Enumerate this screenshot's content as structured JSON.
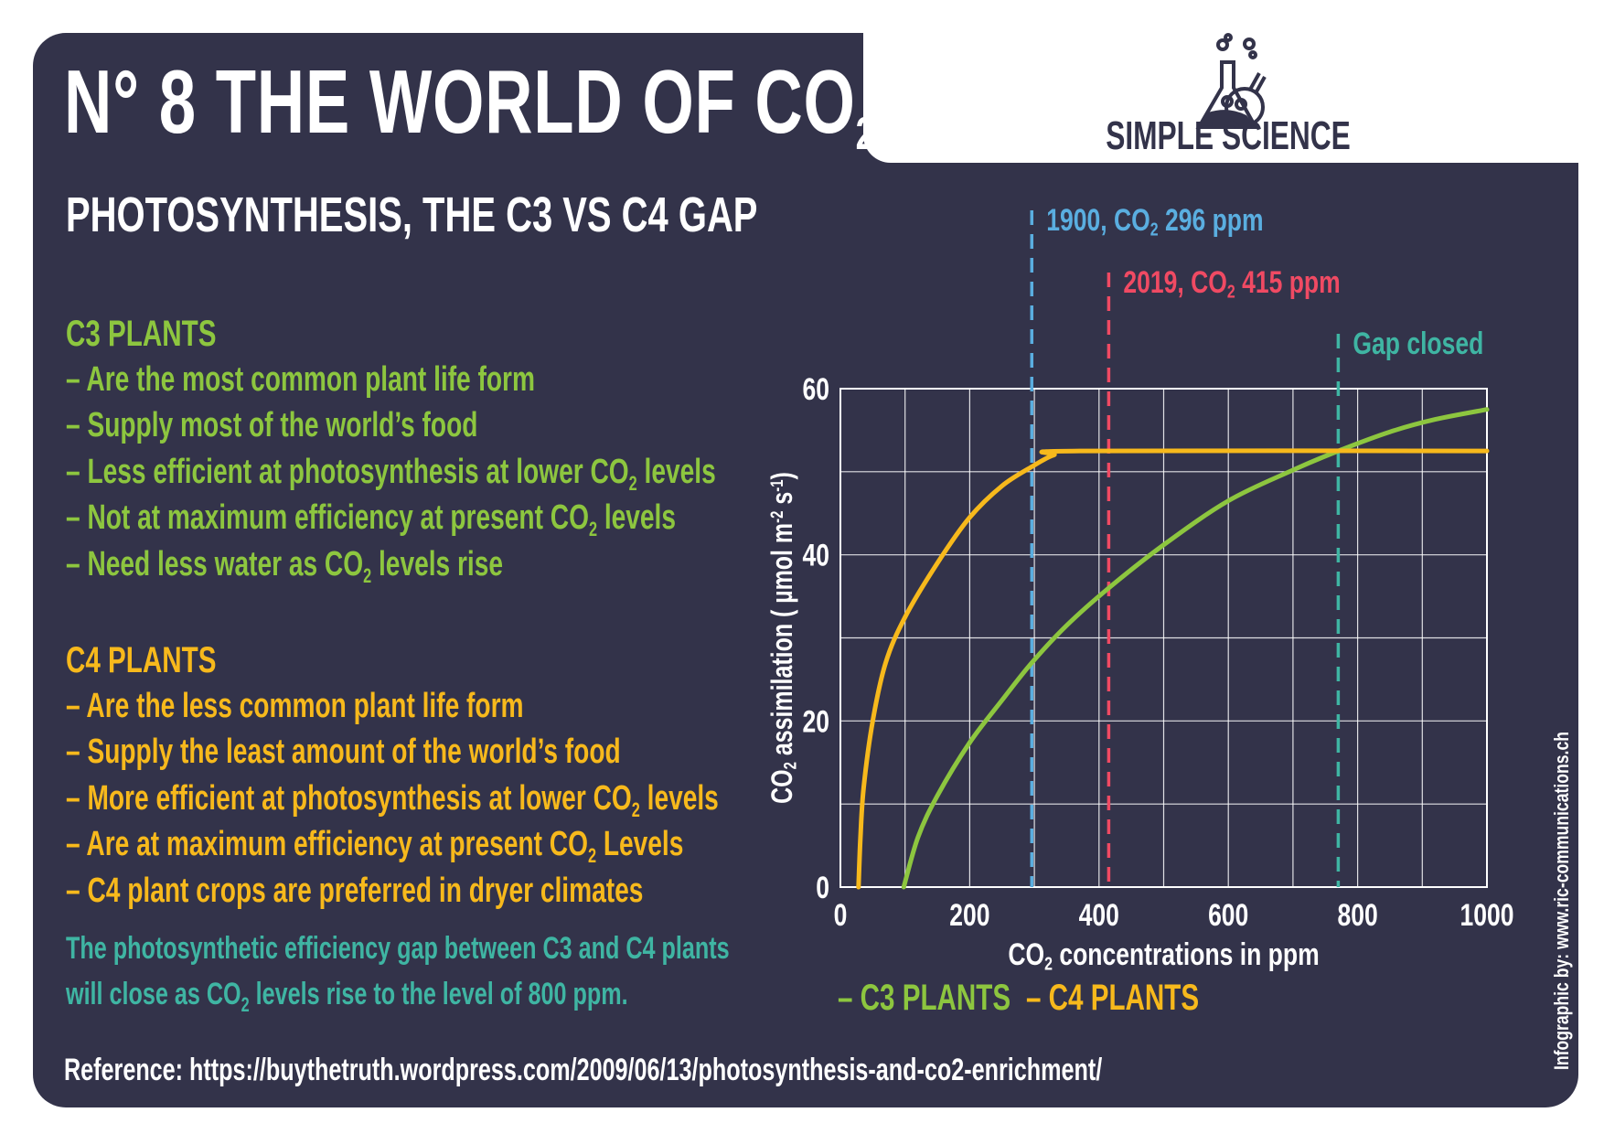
{
  "header": {
    "title": "N° 8    THE WORLD OF CO",
    "title_sub": "2",
    "subtitle": "PHOTOSYNTHESIS, THE C3 VS C4 GAP"
  },
  "logo": {
    "text": "SIMPLE SCIENCE",
    "icon": "lab-flasks-icon"
  },
  "c3": {
    "heading": "C3 PLANTS",
    "items": [
      {
        "pre": "– Are the most common plant life form"
      },
      {
        "pre": "– Supply most of the world’s food"
      },
      {
        "pre": "– Less efficient at photosynthesis at lower CO",
        "sub": "2",
        "post": " levels"
      },
      {
        "pre": "– Not at maximum efficiency at present CO",
        "sub": "2",
        "post": " levels"
      },
      {
        "pre": "– Need less water as CO",
        "sub": "2",
        "post": " levels rise"
      }
    ]
  },
  "c4": {
    "heading": "C4 PLANTS",
    "items": [
      {
        "pre": "– Are the less common plant life form"
      },
      {
        "pre": "– Supply the least amount of the world’s food"
      },
      {
        "pre": "– More efficient at photosynthesis at lower CO",
        "sub": "2",
        "post": " levels"
      },
      {
        "pre": "– Are at maximum efficiency at present CO",
        "sub": "2",
        "post": " Levels"
      },
      {
        "pre": "– C4 plant crops are preferred in dryer climates"
      }
    ]
  },
  "note": [
    {
      "pre": "The photosynthetic efficiency gap between C3 and C4 plants"
    },
    {
      "pre": "will close as CO",
      "sub": "2",
      "post": " levels rise to the level of 800 ppm."
    }
  ],
  "reference": "Reference: https://buythetruth.wordpress.com/2009/06/13/photosynthesis-and-co2-enrichment/",
  "credit": "Infographic by: www.ric-communications.ch",
  "colors": {
    "background": "#33334a",
    "c3": "#8dc63f",
    "c4": "#f7b91c",
    "gap": "#3fb5a3",
    "y1900": "#5aaee0",
    "y2019": "#f04a63"
  },
  "chart_data": {
    "type": "line",
    "xlabel": {
      "pre": "CO",
      "sub": "2",
      "post": " concentrations in ppm"
    },
    "ylabel": {
      "pre": "CO",
      "sub": "2",
      "post": " assimilation ( µmol m",
      "sup1": "-2",
      "mid": " s",
      "sup2": "-1",
      "end": ")"
    },
    "xlim": [
      0,
      1000
    ],
    "ylim": [
      0,
      60
    ],
    "xticks": [
      0,
      200,
      400,
      600,
      800,
      1000
    ],
    "yticks": [
      0,
      20,
      40,
      60
    ],
    "grid": {
      "x_step": 100,
      "y_step": 10
    },
    "legend_position": "bottom",
    "series": [
      {
        "name": "C3 PLANTS",
        "color": "#8dc63f",
        "points": [
          [
            98,
            0
          ],
          [
            120,
            6
          ],
          [
            150,
            11
          ],
          [
            200,
            17.4
          ],
          [
            250,
            22.5
          ],
          [
            296,
            27
          ],
          [
            350,
            31.5
          ],
          [
            415,
            36
          ],
          [
            500,
            41.2
          ],
          [
            600,
            46.5
          ],
          [
            700,
            50.2
          ],
          [
            770,
            52.5
          ],
          [
            850,
            54.8
          ],
          [
            920,
            56.3
          ],
          [
            1000,
            57.5
          ]
        ]
      },
      {
        "name": "C4 PLANTS",
        "color": "#f7b91c",
        "points": [
          [
            28,
            0
          ],
          [
            31,
            6
          ],
          [
            36,
            12
          ],
          [
            50,
            20
          ],
          [
            70,
            27
          ],
          [
            100,
            32.5
          ],
          [
            150,
            39
          ],
          [
            200,
            44.5
          ],
          [
            250,
            48.3
          ],
          [
            296,
            50.6
          ],
          [
            330,
            52
          ],
          [
            370,
            52.5
          ],
          [
            1000,
            52.5
          ]
        ]
      }
    ],
    "annotations": [
      {
        "x": 296,
        "label": {
          "pre": "1900, CO",
          "sub": "2",
          "post": " 296 ppm"
        },
        "color": "#5aaee0"
      },
      {
        "x": 415,
        "label": {
          "pre": "2019, CO",
          "sub": "2",
          "post": " 415 ppm"
        },
        "color": "#f04a63"
      },
      {
        "x": 770,
        "label": {
          "pre": "Gap closed"
        },
        "color": "#3fb5a3"
      }
    ]
  }
}
